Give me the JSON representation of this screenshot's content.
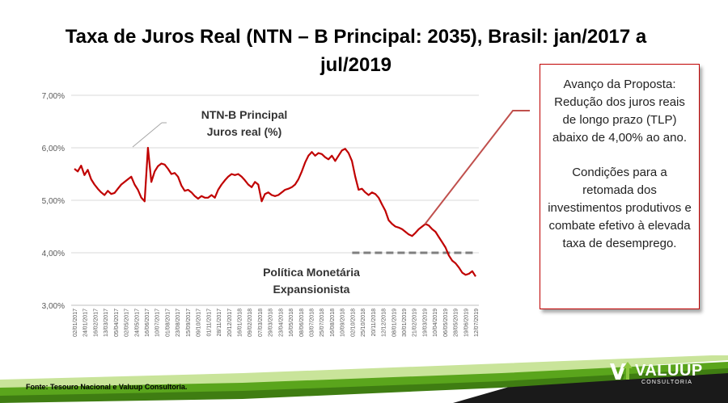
{
  "title": "Taxa de Juros Real (NTN – B Principal: 2035), Brasil: jan/2017 a jul/2019",
  "annotations": {
    "series_line1": "NTN-B Principal",
    "series_line2": "Juros real (%)",
    "policy_line1": "Política Monetária",
    "policy_line2": "Expansionista"
  },
  "callout": {
    "paragraph1": "Avanço da Proposta: Redução dos juros reais de longo prazo (TLP) abaixo de 4,00% ao ano.",
    "paragraph2": "Condições para a retomada dos investimentos produtivos e combate efetivo à elevada taxa de desemprego."
  },
  "footer": {
    "source": "Fonte: Tesouro Nacional e Valuup Consultoria.",
    "logo_name": "VALUUP",
    "logo_sub": "CONSULTORIA"
  },
  "colors": {
    "series": "#c00000",
    "reference_line": "#7f7f7f",
    "callout_border": "#c00000",
    "footer_green": "#5aa51c",
    "footer_dark": "#1a1a1a"
  },
  "chart_data": {
    "type": "line",
    "title": "Taxa de Juros Real (NTN – B Principal: 2035), Brasil: jan/2017 a jul/2019",
    "ylim": [
      3.0,
      7.0
    ],
    "yticks": [
      "3,00%",
      "4,00%",
      "5,00%",
      "6,00%",
      "7,00%"
    ],
    "grid": "horizontal",
    "xticks": [
      "02/01/2017",
      "24/01/2017",
      "16/02/2017",
      "13/03/2017",
      "05/04/2017",
      "02/05/2017",
      "24/05/2017",
      "16/06/2017",
      "10/07/2017",
      "01/08/2017",
      "23/08/2017",
      "15/09/2017",
      "09/10/2017",
      "01/11/2017",
      "28/11/2017",
      "20/12/2017",
      "16/01/2018",
      "09/02/2018",
      "07/03/2018",
      "29/03/2018",
      "23/04/2018",
      "16/05/2018",
      "08/06/2018",
      "03/07/2018",
      "25/07/2018",
      "16/08/2018",
      "10/09/2018",
      "02/10/2018",
      "25/10/2018",
      "20/11/2018",
      "12/12/2018",
      "08/01/2019",
      "30/01/2019",
      "21/02/2019",
      "19/03/2019",
      "10/04/2019",
      "06/05/2019",
      "28/05/2019",
      "19/06/2019",
      "12/07/2019"
    ],
    "series": [
      {
        "values": [
          5.6,
          5.55,
          5.66,
          5.48,
          5.58,
          5.4,
          5.3,
          5.22,
          5.15,
          5.1,
          5.18,
          5.12,
          5.14,
          5.22,
          5.3,
          5.35,
          5.4,
          5.45,
          5.3,
          5.2,
          5.05,
          4.98,
          6.0,
          5.35,
          5.55,
          5.65,
          5.7,
          5.68,
          5.6,
          5.5,
          5.52,
          5.45,
          5.28,
          5.18,
          5.2,
          5.15,
          5.08,
          5.03,
          5.08,
          5.05,
          5.05,
          5.1,
          5.05,
          5.2,
          5.3,
          5.38,
          5.45,
          5.5,
          5.48,
          5.5,
          5.45,
          5.38,
          5.3,
          5.25,
          5.35,
          5.3,
          4.98,
          5.12,
          5.15,
          5.1,
          5.08,
          5.1,
          5.15,
          5.2,
          5.22,
          5.25,
          5.3,
          5.4,
          5.55,
          5.72,
          5.85,
          5.92,
          5.85,
          5.9,
          5.88,
          5.82,
          5.78,
          5.85,
          5.75,
          5.85,
          5.95,
          5.98,
          5.9,
          5.75,
          5.45,
          5.2,
          5.22,
          5.15,
          5.1,
          5.15,
          5.12,
          5.05,
          4.92,
          4.8,
          4.62,
          4.55,
          4.5,
          4.48,
          4.45,
          4.4,
          4.35,
          4.32,
          4.38,
          4.45,
          4.5,
          4.55,
          4.52,
          4.45,
          4.4,
          4.3,
          4.2,
          4.1,
          3.95,
          3.85,
          3.8,
          3.72,
          3.62,
          3.58,
          3.6,
          3.65,
          3.55
        ]
      }
    ],
    "reference_line": {
      "y": 4.0,
      "x_from": "02/10/2018",
      "x_to": "12/07/2019"
    }
  }
}
